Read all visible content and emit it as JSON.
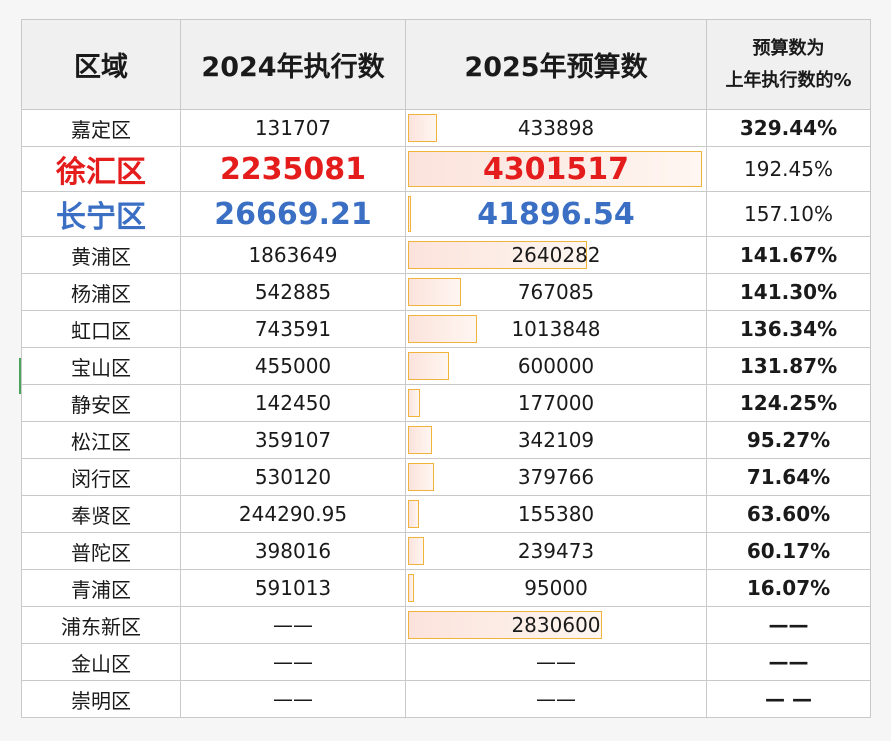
{
  "headers": {
    "region": "区域",
    "v2024": "2024年执行数",
    "v2025": "2025年预算数",
    "pct_line1": "预算数为",
    "pct_line2": "上年执行数的%"
  },
  "rows": [
    {
      "region": "嘉定区",
      "v2024": "131707",
      "v2025": "433898",
      "pct": "329.44%",
      "bar": 0.1,
      "style": ""
    },
    {
      "region": "徐汇区",
      "v2024": "2235081",
      "v2025": "4301517",
      "pct": "192.45%",
      "bar": 1.0,
      "style": "big red"
    },
    {
      "region": "长宁区",
      "v2024": "26669.21",
      "v2025": "41896.54",
      "pct": "157.10%",
      "bar": 0.01,
      "style": "big blue"
    },
    {
      "region": "黄浦区",
      "v2024": "1863649",
      "v2025": "2640282",
      "pct": "141.67%",
      "bar": 0.61,
      "style": ""
    },
    {
      "region": "杨浦区",
      "v2024": "542885",
      "v2025": "767085",
      "pct": "141.30%",
      "bar": 0.18,
      "style": ""
    },
    {
      "region": "虹口区",
      "v2024": "743591",
      "v2025": "1013848",
      "pct": "136.34%",
      "bar": 0.235,
      "style": ""
    },
    {
      "region": "宝山区",
      "v2024": "455000",
      "v2025": "600000",
      "pct": "131.87%",
      "bar": 0.14,
      "style": ""
    },
    {
      "region": "静安区",
      "v2024": "142450",
      "v2025": "177000",
      "pct": "124.25%",
      "bar": 0.04,
      "style": ""
    },
    {
      "region": "松江区",
      "v2024": "359107",
      "v2025": "342109",
      "pct": "95.27%",
      "bar": 0.08,
      "style": ""
    },
    {
      "region": "闵行区",
      "v2024": "530120",
      "v2025": "379766",
      "pct": "71.64%",
      "bar": 0.088,
      "style": ""
    },
    {
      "region": "奉贤区",
      "v2024": "244290.95",
      "v2025": "155380",
      "pct": "63.60%",
      "bar": 0.036,
      "style": ""
    },
    {
      "region": "普陀区",
      "v2024": "398016",
      "v2025": "239473",
      "pct": "60.17%",
      "bar": 0.056,
      "style": ""
    },
    {
      "region": "青浦区",
      "v2024": "591013",
      "v2025": "95000",
      "pct": "16.07%",
      "bar": 0.022,
      "style": ""
    },
    {
      "region": "浦东新区",
      "v2024": "——",
      "v2025": "2830600",
      "pct": "——",
      "bar": 0.66,
      "style": ""
    },
    {
      "region": "金山区",
      "v2024": "——",
      "v2025": "——",
      "pct": "——",
      "bar": 0,
      "style": ""
    },
    {
      "region": "崇明区",
      "v2024": "——",
      "v2025": "——",
      "pct": "— —",
      "bar": 0,
      "style": ""
    }
  ],
  "colors": {
    "highlight_red": "#e51c1c",
    "highlight_blue": "#3a6fc4",
    "bar_border": "#f2b33d",
    "bar_fill": "#fbe3dc"
  }
}
